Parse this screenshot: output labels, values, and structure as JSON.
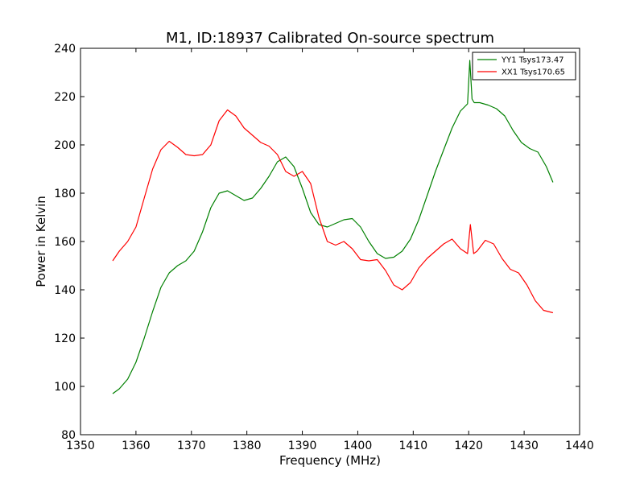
{
  "chart_data": {
    "type": "line",
    "title": "M1, ID:18937 Calibrated On-source spectrum",
    "xlabel": "Frequency (MHz)",
    "ylabel": "Power in Kelvin",
    "xlim": [
      1350,
      1440
    ],
    "ylim": [
      80,
      240
    ],
    "xticks": [
      1350,
      1360,
      1370,
      1380,
      1390,
      1400,
      1410,
      1420,
      1430,
      1440
    ],
    "yticks": [
      80,
      100,
      120,
      140,
      160,
      180,
      200,
      220,
      240
    ],
    "grid": false,
    "legend_position": "top-right",
    "series": [
      {
        "name": "YY1 Tsys173.47",
        "color": "#008000",
        "x": [
          1355.8,
          1357,
          1358.5,
          1360,
          1361.5,
          1363,
          1364.5,
          1366,
          1367.5,
          1369,
          1370.5,
          1372,
          1373.5,
          1375,
          1376.5,
          1378,
          1379.5,
          1381,
          1382.5,
          1384,
          1385.5,
          1387,
          1388.5,
          1390,
          1391.5,
          1393,
          1394.5,
          1396,
          1397.5,
          1399,
          1400.5,
          1402,
          1403.5,
          1405,
          1406.5,
          1408,
          1409.5,
          1411,
          1412.5,
          1414,
          1415.5,
          1417,
          1418.5,
          1419.8,
          1420.2,
          1420.6,
          1421,
          1422,
          1423.5,
          1425,
          1426.5,
          1428,
          1429.5,
          1431,
          1432.5,
          1434,
          1435.2
        ],
        "y": [
          97,
          99,
          103,
          110,
          120,
          131,
          141,
          147,
          150,
          152,
          156,
          164,
          174,
          180,
          181,
          179,
          177,
          178,
          182,
          187,
          193,
          195,
          191,
          182,
          172,
          167,
          166,
          167.5,
          169,
          169.5,
          166,
          160,
          155,
          153,
          153.5,
          156,
          161,
          169,
          179,
          189,
          198,
          207,
          214,
          217,
          235,
          219,
          217.5,
          217.5,
          216.5,
          215,
          212,
          206,
          201,
          198.5,
          197,
          191,
          184.5
        ]
      },
      {
        "name": "XX1 Tsys170.65",
        "color": "#ff0000",
        "x": [
          1355.8,
          1357,
          1358.5,
          1360,
          1361.5,
          1363,
          1364.5,
          1366,
          1367.5,
          1369,
          1370.5,
          1372,
          1373.5,
          1375,
          1376.5,
          1378,
          1379.5,
          1381,
          1382.5,
          1384,
          1385.5,
          1387,
          1388.5,
          1390,
          1391.5,
          1393,
          1394.5,
          1396,
          1397.5,
          1399,
          1400.5,
          1402,
          1403.5,
          1405,
          1406.5,
          1408,
          1409.5,
          1411,
          1412.5,
          1414,
          1415.5,
          1417,
          1418.5,
          1419.8,
          1420.3,
          1420.9,
          1421.5,
          1423,
          1424.5,
          1426,
          1427.5,
          1429,
          1430.5,
          1432,
          1433.5,
          1435.2
        ],
        "y": [
          152,
          156,
          160,
          166,
          178,
          190,
          198,
          201.5,
          199,
          196,
          195.5,
          196,
          200,
          210,
          214.5,
          212,
          207,
          204,
          201,
          199.5,
          196,
          189,
          187,
          189,
          184,
          170,
          160,
          158.5,
          160,
          157,
          152.5,
          152,
          152.5,
          148,
          142,
          140,
          143,
          149,
          153,
          156,
          159,
          161,
          157,
          155,
          167,
          155,
          156,
          160.5,
          159,
          153,
          148.5,
          147,
          142,
          135.5,
          131.5,
          130.5
        ]
      }
    ]
  }
}
